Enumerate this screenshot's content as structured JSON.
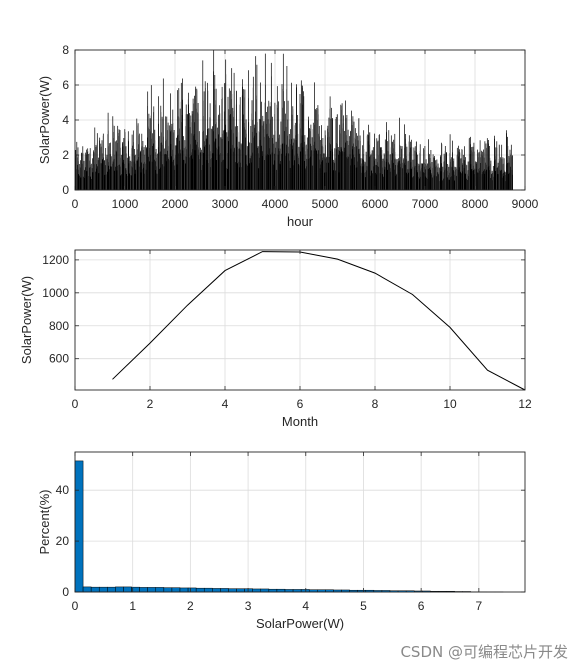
{
  "watermark": "CSDN @可编程芯片开发",
  "colors": {
    "axis": "#262626",
    "grid": "#dcdcdc",
    "line": "#000000",
    "bar": "#0072bd",
    "bar_edge": "#000000"
  },
  "chart_data": [
    {
      "id": "hourly",
      "type": "line",
      "title": "",
      "xlabel": "hour",
      "ylabel": "SolarPower(W)",
      "xlim": [
        0,
        9000
      ],
      "ylim": [
        0,
        8
      ],
      "xticks": [
        0,
        1000,
        2000,
        3000,
        4000,
        5000,
        6000,
        7000,
        8000,
        9000
      ],
      "yticks": [
        0,
        2,
        4,
        6,
        8
      ],
      "grid": true,
      "x_range": [
        1,
        8760
      ],
      "daily_envelope": {
        "hour_offsets": [
          0,
          7500
        ],
        "peak_values": [
          3.5,
          4.0,
          4.6,
          5.2,
          5.8,
          6.3,
          6.8,
          7.2,
          7.1,
          6.9,
          6.5,
          5.9,
          5.3,
          4.7,
          4.1,
          3.7,
          3.4,
          3.2,
          3.0,
          3.1,
          3.5
        ]
      }
    },
    {
      "id": "monthly",
      "type": "line",
      "title": "",
      "xlabel": "Month",
      "ylabel": "SolarPower(W)",
      "xlim": [
        0,
        12
      ],
      "ylim": [
        410,
        1260
      ],
      "xticks": [
        0,
        2,
        4,
        6,
        8,
        10,
        12
      ],
      "yticks": [
        600,
        800,
        1000,
        1200
      ],
      "grid": true,
      "x": [
        1,
        2,
        3,
        4,
        5,
        6,
        7,
        8,
        9,
        10,
        11,
        12
      ],
      "y": [
        475,
        695,
        925,
        1135,
        1250,
        1248,
        1205,
        1120,
        990,
        790,
        530,
        410
      ]
    },
    {
      "id": "histogram",
      "type": "bar",
      "title": "",
      "xlabel": "SolarPower(W)",
      "ylabel": "Percent(%)",
      "xlim": [
        0,
        7.8
      ],
      "ylim": [
        0,
        55
      ],
      "xticks": [
        0,
        1,
        2,
        3,
        4,
        5,
        6,
        7
      ],
      "yticks": [
        0,
        20,
        40
      ],
      "grid": true,
      "bin_width": 0.14,
      "bin_start": 0.07,
      "values": [
        51.5,
        2.0,
        1.9,
        1.9,
        1.9,
        2.0,
        2.0,
        1.9,
        1.8,
        1.8,
        1.8,
        1.7,
        1.7,
        1.6,
        1.6,
        1.5,
        1.5,
        1.4,
        1.4,
        1.3,
        1.3,
        1.3,
        1.2,
        1.2,
        1.1,
        1.1,
        1.0,
        1.0,
        1.0,
        0.9,
        0.9,
        0.9,
        0.8,
        0.8,
        0.7,
        0.7,
        0.7,
        0.6,
        0.6,
        0.5,
        0.5,
        0.5,
        0.4,
        0.4,
        0.3,
        0.3,
        0.3,
        0.2,
        0.2,
        0.1,
        0.1,
        0.05,
        0.05,
        0.0,
        0.0,
        0.0
      ]
    }
  ]
}
